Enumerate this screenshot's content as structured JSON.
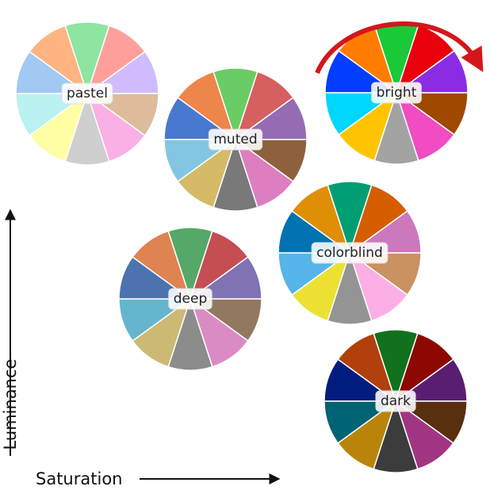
{
  "palettes": [
    {
      "label": "pastel",
      "colors": [
        "#A1C9F4",
        "#FFB482",
        "#8DE5A1",
        "#FF9F9B",
        "#D0BBFF",
        "#DEBB9B",
        "#FAB0E4",
        "#CFCFCF",
        "#FFFEA3",
        "#B9F2F0"
      ]
    },
    {
      "label": "muted",
      "colors": [
        "#4878D0",
        "#EE854A",
        "#6ACC64",
        "#D65F5F",
        "#956CB4",
        "#8C613C",
        "#DC7EC0",
        "#797979",
        "#D5BB67",
        "#82C6E2"
      ]
    },
    {
      "label": "bright",
      "colors": [
        "#023EFF",
        "#FF7C00",
        "#1AC938",
        "#E8000B",
        "#8B2BE2",
        "#9F4800",
        "#F14CC1",
        "#A3A3A3",
        "#FFC400",
        "#00D7FF"
      ]
    },
    {
      "label": "colorblind",
      "colors": [
        "#0173B2",
        "#DE8F05",
        "#029E73",
        "#D55E00",
        "#CC78BC",
        "#CA9161",
        "#FBAFE4",
        "#949494",
        "#ECE133",
        "#56B4E9"
      ]
    },
    {
      "label": "deep",
      "colors": [
        "#4C72B0",
        "#DD8452",
        "#55A868",
        "#C44E52",
        "#8172B3",
        "#937860",
        "#DA8BC3",
        "#8C8C8C",
        "#CCB974",
        "#64B5CD"
      ]
    },
    {
      "label": "dark",
      "colors": [
        "#001C7F",
        "#B1400D",
        "#12711C",
        "#8C0800",
        "#591E71",
        "#592F0D",
        "#A23582",
        "#3C3C3C",
        "#B8850A",
        "#006374"
      ]
    }
  ],
  "axes": {
    "x": "Saturation",
    "y": "Luminance"
  }
}
